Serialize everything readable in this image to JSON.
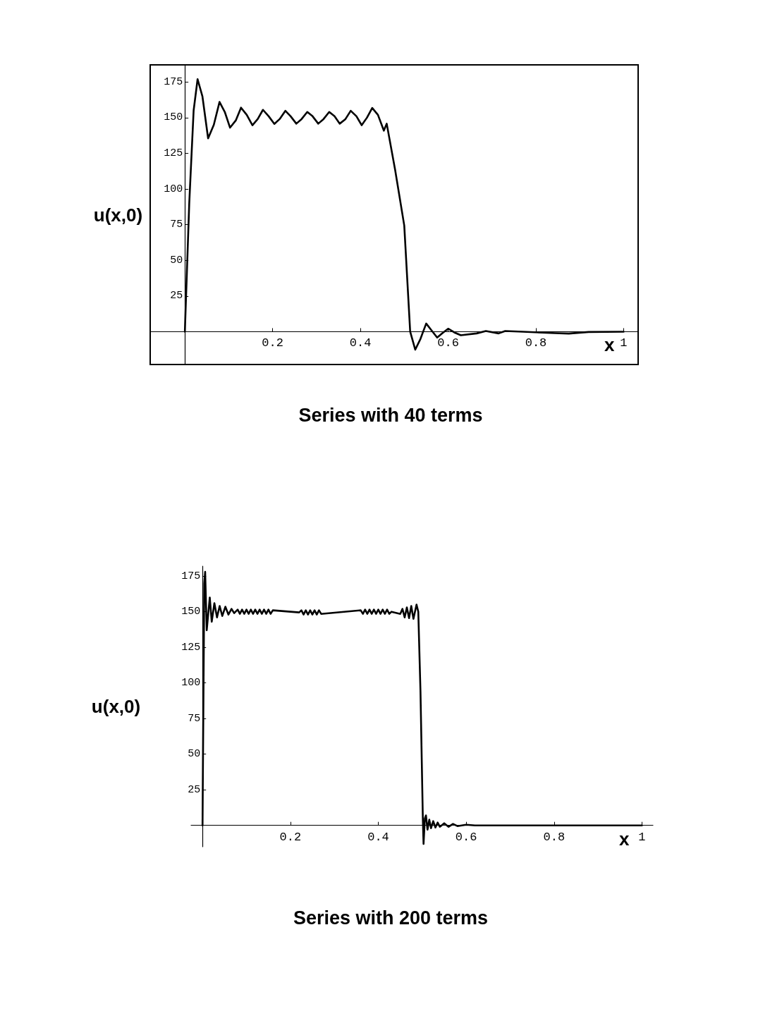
{
  "chart_data": [
    {
      "type": "line",
      "title": "Series with 40 terms",
      "xlabel": "x",
      "ylabel": "u(x,0)",
      "xlim": [
        -0.079,
        1.033
      ],
      "ylim": [
        -23,
        187
      ],
      "xticks": [
        0.2,
        0.4,
        0.6,
        0.8,
        1
      ],
      "yticks": [
        25,
        50,
        75,
        100,
        125,
        150,
        175
      ],
      "grid": false,
      "marker": "none",
      "line_style": "solid",
      "series": [
        {
          "color": "#000000",
          "x": [
            0,
            0.01,
            0.02,
            0.029,
            0.04,
            0.053,
            0.066,
            0.079,
            0.091,
            0.103,
            0.116,
            0.128,
            0.141,
            0.154,
            0.166,
            0.178,
            0.191,
            0.204,
            0.216,
            0.229,
            0.241,
            0.254,
            0.266,
            0.279,
            0.291,
            0.304,
            0.316,
            0.329,
            0.341,
            0.353,
            0.366,
            0.378,
            0.391,
            0.403,
            0.415,
            0.427,
            0.44,
            0.4535,
            0.46,
            0.479,
            0.5,
            0.5135,
            0.525,
            0.537,
            0.55,
            0.562,
            0.575,
            0.587,
            0.6,
            0.614,
            0.629,
            0.665,
            0.686,
            0.715,
            0.73,
            0.77,
            0.843,
            0.875,
            0.92,
            1
          ],
          "values": [
            0,
            90,
            155,
            177,
            165,
            135.5,
            145,
            161,
            154,
            143,
            148,
            157,
            152,
            144.7,
            149,
            155.5,
            151,
            145.6,
            149,
            154.8,
            151,
            145.8,
            149,
            154,
            151,
            145.8,
            149,
            154,
            151,
            145.8,
            149,
            154.8,
            151,
            144.7,
            150,
            156.8,
            152,
            140.9,
            145.8,
            113.8,
            74.4,
            0,
            -12.6,
            -5,
            5.7,
            1,
            -4.1,
            -1,
            2.1,
            -0.5,
            -2.5,
            -1.2,
            0.5,
            -1.2,
            0.5,
            0,
            -1,
            -1.3,
            -0.2,
            0
          ]
        }
      ]
    },
    {
      "type": "line",
      "title": "Series with 200 terms",
      "xlabel": "x",
      "ylabel": "u(x,0)",
      "xlim": [
        -0.026,
        1.025
      ],
      "ylim": [
        -15,
        182
      ],
      "xticks": [
        0.2,
        0.4,
        0.6,
        0.8,
        1
      ],
      "yticks": [
        25,
        50,
        75,
        100,
        125,
        150,
        175
      ],
      "grid": false,
      "marker": "none",
      "line_style": "solid",
      "series": [
        {
          "color": "#000000",
          "x": [
            0,
            0.004,
            0.006,
            0.0096,
            0.0165,
            0.021,
            0.027,
            0.033,
            0.039,
            0.045,
            0.052,
            0.059,
            0.066,
            0.072,
            0.08,
            0.085,
            0.09,
            0.095,
            0.1,
            0.105,
            0.11,
            0.115,
            0.12,
            0.125,
            0.13,
            0.135,
            0.14,
            0.145,
            0.15,
            0.155,
            0.16,
            0.22,
            0.225,
            0.23,
            0.235,
            0.24,
            0.245,
            0.25,
            0.255,
            0.26,
            0.265,
            0.27,
            0.36,
            0.365,
            0.37,
            0.375,
            0.38,
            0.385,
            0.39,
            0.395,
            0.4,
            0.405,
            0.41,
            0.415,
            0.42,
            0.425,
            0.43,
            0.45,
            0.455,
            0.46,
            0.465,
            0.47,
            0.475,
            0.48,
            0.487,
            0.491,
            0.496,
            0.499,
            0.5015,
            0.503,
            0.506,
            0.5085,
            0.512,
            0.516,
            0.52,
            0.525,
            0.53,
            0.535,
            0.54,
            0.55,
            0.56,
            0.57,
            0.58,
            0.6,
            0.62,
            1
          ],
          "values": [
            0,
            170,
            178,
            137,
            160,
            143,
            156,
            146,
            154,
            147,
            153.5,
            148,
            152,
            149,
            151.5,
            148.5,
            151.5,
            148.5,
            151.5,
            148.5,
            151.5,
            148.5,
            151.5,
            148.5,
            151.5,
            148.5,
            151.5,
            148.5,
            151.5,
            148.5,
            151,
            149.5,
            151,
            148,
            151,
            148,
            151,
            148,
            151,
            148,
            151,
            148.5,
            151,
            148.5,
            151.5,
            148.5,
            151.5,
            148.5,
            151.5,
            148.5,
            151.5,
            148.5,
            151.5,
            148.5,
            151.5,
            148.5,
            150,
            148.5,
            152,
            146,
            153,
            145.5,
            154,
            145,
            155,
            150,
            94,
            44,
            3,
            -13,
            5,
            7,
            -3,
            4,
            -2,
            3,
            -1.5,
            2,
            -1,
            1.5,
            -1,
            1,
            -0.5,
            0.5,
            0,
            0
          ]
        }
      ]
    }
  ]
}
